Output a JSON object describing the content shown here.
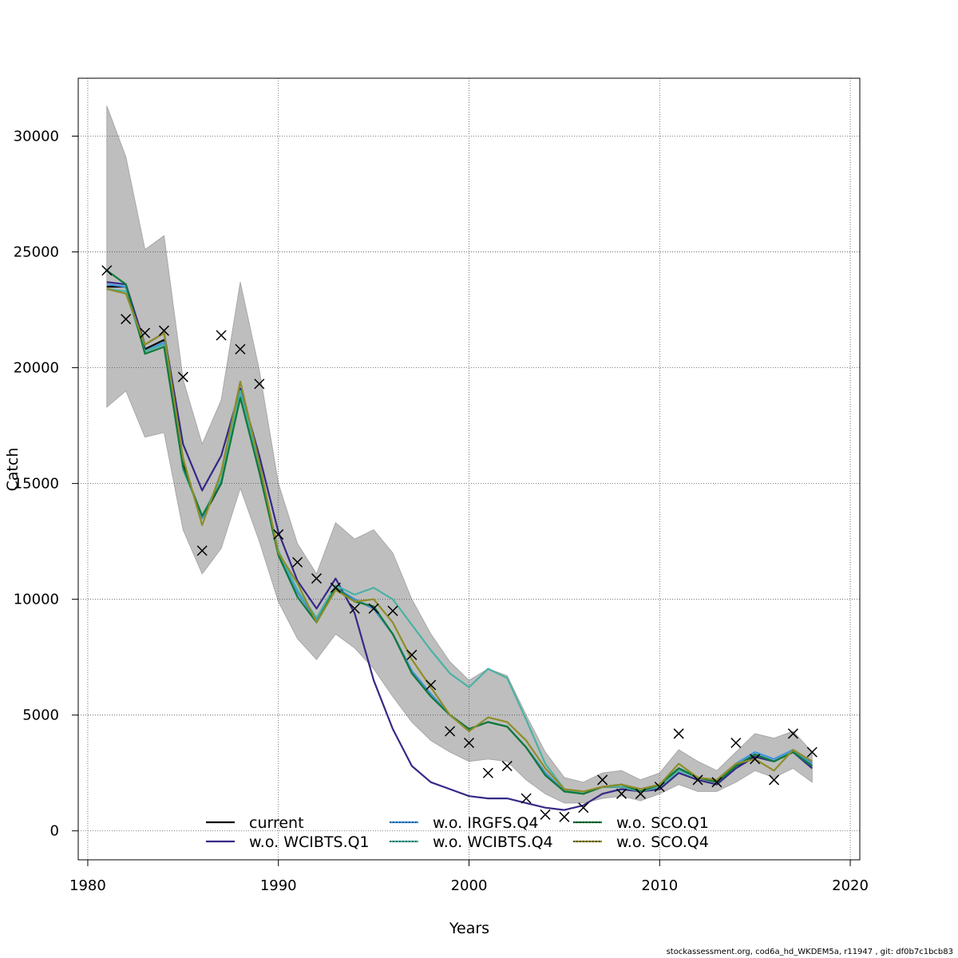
{
  "footer": "stockassessment.org, cod6a_hd_WKDEM5a, r11947 , git: df0b7c1bcb83",
  "chart_data": {
    "type": "line",
    "title": "",
    "xlabel": "Years",
    "ylabel": "Catch",
    "xlim": [
      1979.5,
      2020.5
    ],
    "ylim": [
      -1250,
      32500
    ],
    "grid": true,
    "x_ticks": [
      1980,
      1990,
      2000,
      2010,
      2020
    ],
    "y_ticks": [
      0,
      5000,
      10000,
      15000,
      20000,
      25000,
      30000
    ],
    "legend_position": "bottom",
    "colors": {
      "band": "#bebebe",
      "current": "#000000",
      "w.o. WCIBTS.Q1": "#352a87",
      "w.o. IRGFS.Q4": "#3e95e0",
      "w.o. WCIBTS.Q4": "#4ab2a4",
      "w.o. SCO.Q1": "#0f7a3a",
      "w.o. SCO.Q4": "#8e8d28"
    },
    "x": [
      1981,
      1982,
      1983,
      1984,
      1985,
      1986,
      1987,
      1988,
      1989,
      1990,
      1991,
      1992,
      1993,
      1994,
      1995,
      1996,
      1997,
      1998,
      1999,
      2000,
      2001,
      2002,
      2003,
      2004,
      2005,
      2006,
      2007,
      2008,
      2009,
      2010,
      2011,
      2012,
      2013,
      2014,
      2015,
      2016,
      2017,
      2018
    ],
    "band": {
      "name": "confidence interval",
      "upper": [
        31300,
        29100,
        25100,
        25700,
        19500,
        16700,
        18600,
        23700,
        19900,
        15000,
        12400,
        11100,
        13300,
        12600,
        13000,
        12000,
        10000,
        8500,
        7300,
        6500,
        7000,
        6700,
        5000,
        3400,
        2300,
        2100,
        2500,
        2600,
        2200,
        2500,
        3500,
        3000,
        2600,
        3400,
        4200,
        4000,
        4300,
        3400
      ],
      "lower": [
        18300,
        19000,
        17000,
        17200,
        13000,
        11100,
        12200,
        14800,
        12500,
        9900,
        8300,
        7400,
        8500,
        7900,
        7000,
        5800,
        4700,
        3900,
        3400,
        3000,
        3100,
        3000,
        2200,
        1600,
        1200,
        1200,
        1400,
        1500,
        1300,
        1600,
        2000,
        1700,
        1700,
        2100,
        2600,
        2300,
        2700,
        2100
      ]
    },
    "observations": {
      "name": "observed catch",
      "marker": "x",
      "values": [
        24200,
        22100,
        21500,
        21600,
        19600,
        12100,
        21400,
        20800,
        19300,
        12800,
        11600,
        10900,
        10500,
        9600,
        9600,
        9500,
        7600,
        6300,
        4300,
        3800,
        2500,
        2800,
        1400,
        700,
        600,
        1000,
        2200,
        1600,
        1600,
        1900,
        4200,
        2200,
        2100,
        3800,
        3100,
        2200,
        4200,
        3400
      ]
    },
    "series": [
      {
        "name": "current",
        "style": "solid",
        "values": [
          23500,
          23500,
          20800,
          21200,
          15800,
          13500,
          15000,
          18800,
          15500,
          12000,
          10300,
          9100,
          10500,
          10000,
          9600,
          8500,
          6900,
          5900,
          5000,
          4400,
          4700,
          4500,
          3600,
          2500,
          1700,
          1600,
          1900,
          1900,
          1700,
          1900,
          2700,
          2300,
          2100,
          2800,
          3200,
          3000,
          3400,
          2800
        ]
      },
      {
        "name": "w.o. WCIBTS.Q1",
        "style": "solid",
        "values": [
          23700,
          23600,
          21000,
          21500,
          16700,
          14700,
          16200,
          19100,
          16200,
          12900,
          10800,
          9600,
          10900,
          9400,
          6500,
          4400,
          2800,
          2100,
          1800,
          1500,
          1400,
          1400,
          1200,
          1000,
          900,
          1100,
          1600,
          1800,
          1700,
          1800,
          2500,
          2200,
          2000,
          2700,
          3200,
          3000,
          3400,
          2700
        ]
      },
      {
        "name": "w.o. IRGFS.Q4",
        "style": "dotted",
        "values": [
          23600,
          23500,
          20700,
          21100,
          15700,
          13500,
          15100,
          18900,
          15600,
          12000,
          10300,
          9100,
          10500,
          10000,
          9600,
          8500,
          6900,
          5900,
          5000,
          4400,
          4700,
          4500,
          3600,
          2500,
          1700,
          1600,
          1900,
          2000,
          1800,
          2000,
          2700,
          2300,
          2200,
          2900,
          3400,
          3100,
          3500,
          2900
        ]
      },
      {
        "name": "w.o. WCIBTS.Q4",
        "style": "dotted",
        "values": [
          23400,
          23300,
          20700,
          21000,
          15600,
          13600,
          15200,
          19000,
          15700,
          12100,
          10400,
          9200,
          10600,
          10200,
          10500,
          10000,
          8900,
          7800,
          6800,
          6200,
          7000,
          6600,
          4800,
          2900,
          1800,
          1600,
          1900,
          1900,
          1700,
          1900,
          2600,
          2300,
          2100,
          2800,
          3300,
          3000,
          3400,
          2800
        ]
      },
      {
        "name": "w.o. SCO.Q1",
        "style": "dotted",
        "values": [
          24200,
          23600,
          20600,
          20900,
          15700,
          13600,
          15000,
          18700,
          15500,
          11900,
          10100,
          9000,
          10500,
          9900,
          9700,
          8500,
          6800,
          5800,
          5000,
          4400,
          4700,
          4500,
          3600,
          2400,
          1700,
          1600,
          1900,
          2000,
          1700,
          2000,
          2700,
          2300,
          2100,
          2800,
          3300,
          3000,
          3400,
          2800
        ]
      },
      {
        "name": "w.o. SCO.Q4",
        "style": "dotted",
        "values": [
          23400,
          23200,
          21000,
          21500,
          16100,
          13200,
          15500,
          19400,
          15900,
          12000,
          10700,
          9000,
          10400,
          9900,
          10000,
          9000,
          7400,
          6200,
          5000,
          4300,
          4900,
          4700,
          3900,
          2700,
          1800,
          1700,
          1900,
          2000,
          1800,
          2000,
          2900,
          2300,
          2200,
          2900,
          3100,
          2600,
          3500,
          3000
        ]
      }
    ]
  }
}
